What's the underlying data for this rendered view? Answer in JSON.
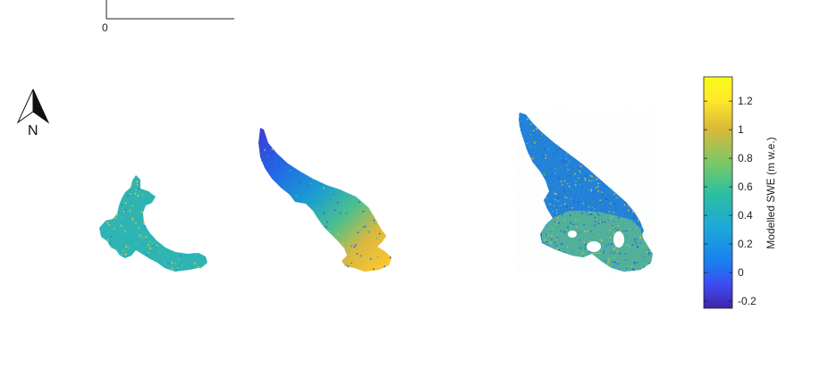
{
  "scalebar": {
    "start_label": "0"
  },
  "north_arrow": {
    "label": "N",
    "icon": "north-arrow-icon"
  },
  "colorbar": {
    "title": "Modelled SWE (m w.e.)",
    "min": -0.25,
    "max": 1.37,
    "ticks": [
      -0.2,
      0,
      0.2,
      0.4,
      0.6,
      0.8,
      1,
      1.2
    ],
    "tick_labels": [
      "-0.2",
      "0",
      "0.2",
      "0.4",
      "0.6",
      "0.8",
      "1",
      "1.2"
    ],
    "colormap": [
      "#3e26a8",
      "#3e4af0",
      "#1a7ff0",
      "#1ca9d9",
      "#2ebf9f",
      "#76c868",
      "#ddb938",
      "#fee92c",
      "#f9fb15"
    ]
  },
  "glaciers": [
    {
      "name": "",
      "swe_low": 0.35,
      "swe_high": 0.55,
      "texture": "speckled"
    },
    {
      "name": "",
      "swe_low": -0.15,
      "swe_high": 1.2,
      "texture": "gradient"
    },
    {
      "name": "",
      "swe_low": 0.05,
      "swe_high": 0.5,
      "texture": "noisy"
    }
  ]
}
